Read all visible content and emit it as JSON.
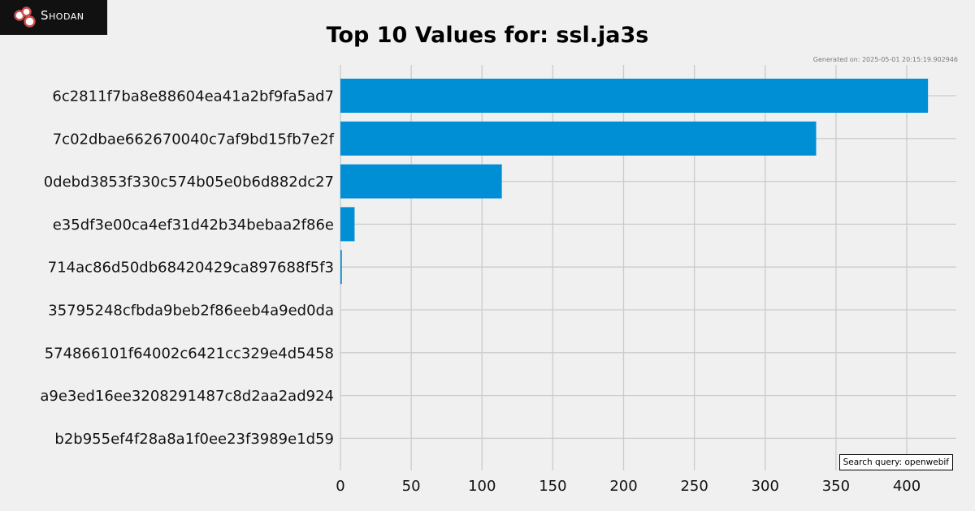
{
  "brand": {
    "name": "Shodan"
  },
  "chart_data": {
    "type": "bar",
    "orientation": "horizontal",
    "title": "Top 10 Values for: ssl.ja3s",
    "categories": [
      "6c2811f7ba8e88604ea41a2bf9fa5ad7",
      "7c02dbae662670040c7af9bd15fb7e2f",
      "0debd3853f330c574b05e0b6d882dc27",
      "e35df3e00ca4ef31d42b34bebaa2f86e",
      "714ac86d50db68420429ca897688f5f3",
      "35795248cfbda9beb2f86eeb4a9ed0da",
      "574866101f64002c6421cc329e4d5458",
      "a9e3ed16ee3208291487c8d2aa2ad924",
      "b2b955ef4f28a8a1f0ee23f3989e1d59"
    ],
    "values": [
      415,
      336,
      114,
      10,
      1,
      0,
      0,
      0,
      0
    ],
    "xlim": [
      0,
      435
    ],
    "xticks": [
      0,
      50,
      100,
      150,
      200,
      250,
      300,
      350,
      400
    ],
    "xlabel": "",
    "ylabel": "",
    "grid": true,
    "bar_color": "#008fd5",
    "grid_color": "#cbcbcb"
  },
  "meta": {
    "generated": "Generated on: 2025-05-01 20:15:19.902946",
    "query": "Search query: openwebif"
  }
}
